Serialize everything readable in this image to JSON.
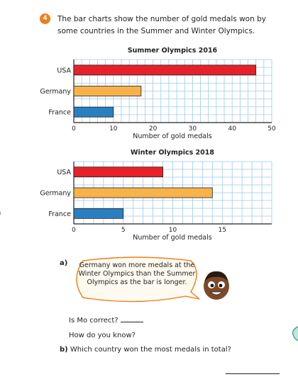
{
  "question": {
    "number": "4",
    "text": "The bar charts show the number of gold medals won by some countries in the Summer and Winter Olympics."
  },
  "chart_data": [
    {
      "type": "bar",
      "orientation": "horizontal",
      "title": "Summer Olympics 2016",
      "categories": [
        "USA",
        "Germany",
        "France"
      ],
      "values": [
        46,
        17,
        10
      ],
      "colors": [
        "#e8202a",
        "#f7b24a",
        "#2a7fc1"
      ],
      "xlabel": "Number of gold medals",
      "xlim": [
        0,
        50
      ],
      "ticks": [
        "0",
        "10",
        "20",
        "30",
        "40",
        "50"
      ],
      "grid": true
    },
    {
      "type": "bar",
      "orientation": "horizontal",
      "title": "Winter Olympics 2018",
      "categories": [
        "USA",
        "Germany",
        "France"
      ],
      "values": [
        9,
        14,
        5
      ],
      "colors": [
        "#e8202a",
        "#f7b24a",
        "#2a7fc1"
      ],
      "xlabel": "Number of gold medals",
      "xlim": [
        0,
        20
      ],
      "ticks": [
        "0",
        "5",
        "10",
        "15"
      ],
      "grid": true
    }
  ],
  "part_a": {
    "label": "a)",
    "speech": "Germany won more medals at the Winter Olympics than the Summer Olympics as the bar is longer.",
    "q1": "Is Mo correct?",
    "q2": "How do you know?"
  },
  "part_b": {
    "label": "b)",
    "text": "Which country won the most medals in total?"
  }
}
